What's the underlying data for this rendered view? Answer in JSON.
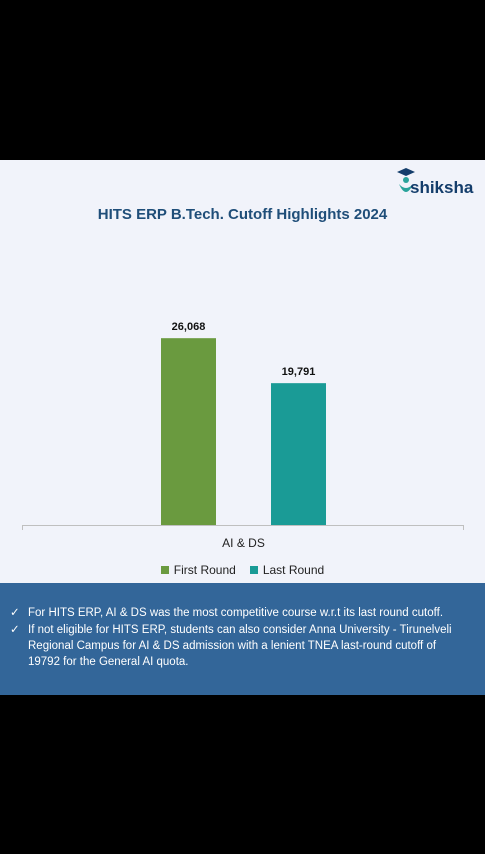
{
  "brand": {
    "logo_text": "shiksha"
  },
  "chart_data": {
    "type": "bar",
    "title": "HITS ERP B.Tech. Cutoff Highlights 2024",
    "categories": [
      "AI & DS"
    ],
    "series": [
      {
        "name": "First Round",
        "values": [
          26068
        ],
        "labels": [
          "26,068"
        ],
        "color": "#6a9a3f"
      },
      {
        "name": "Last Round",
        "values": [
          19791
        ],
        "labels": [
          "19,791"
        ],
        "color": "#1a9b96"
      }
    ],
    "ylim": [
      0,
      30000
    ],
    "grid": false,
    "legend_position": "bottom"
  },
  "notes": [
    "For HITS ERP, AI & DS was the most competitive course w.r.t its last round cutoff.",
    "If not eligible for HITS ERP, students can also consider Anna University - Tirunelveli Regional Campus for AI & DS admission with a lenient TNEA last-round cutoff of 19792 for the General AI quota."
  ],
  "colors": {
    "background": "#000000",
    "card": "#f1f3fa",
    "notes_bg": "#336699",
    "title": "#1f4e79"
  }
}
